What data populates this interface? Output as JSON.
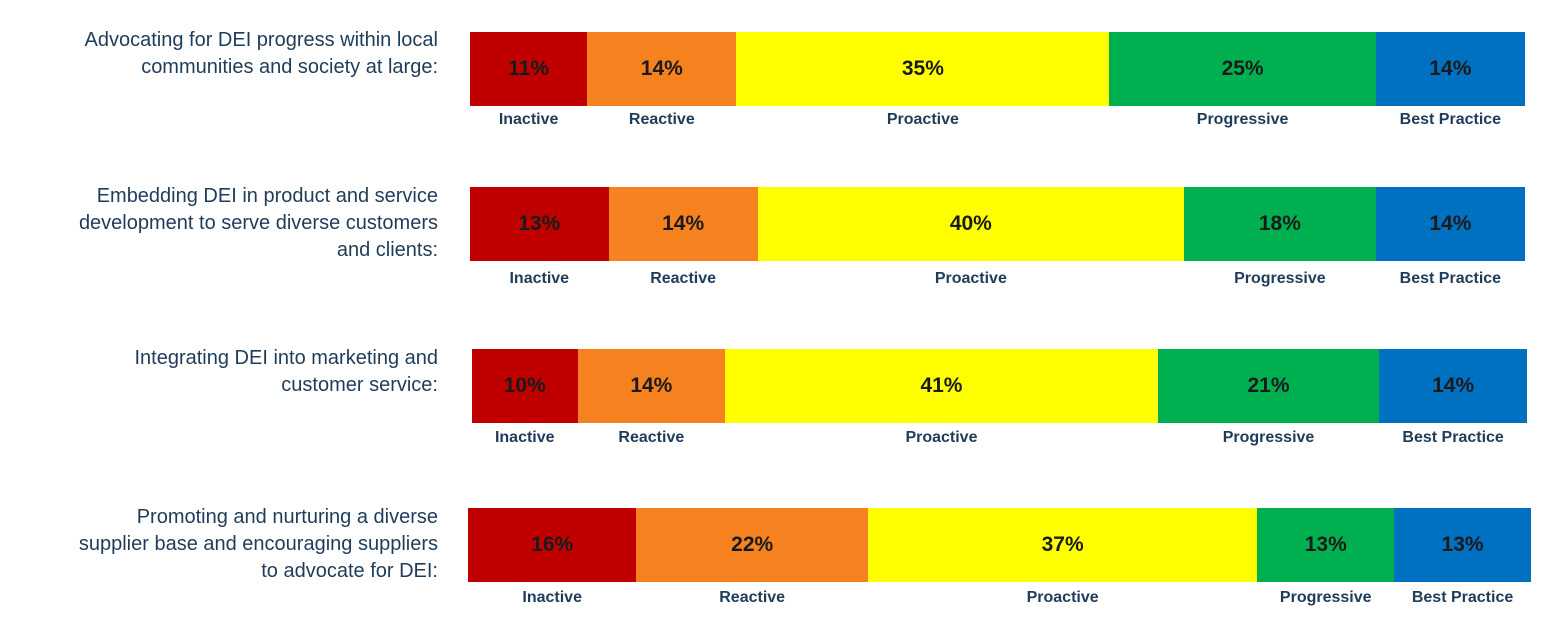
{
  "chart_data": {
    "type": "bar",
    "orientation": "horizontal",
    "stacked": true,
    "categories": [
      "Inactive",
      "Reactive",
      "Proactive",
      "Progressive",
      "Best Practice"
    ],
    "colors": [
      "#c00000",
      "#f5821f",
      "#ffff00",
      "#00b050",
      "#0070c0"
    ],
    "value_unit": "%",
    "rows": [
      {
        "label": "Advocating for DEI progress within local\ncommunities and society at large:",
        "values": [
          11,
          14,
          35,
          25,
          14
        ],
        "value_labels": [
          "11%",
          "14%",
          "35%",
          "25%",
          "14%"
        ]
      },
      {
        "label": "Embedding DEI in product and service\ndevelopment to serve diverse customers\nand clients:",
        "values": [
          13,
          14,
          40,
          18,
          14
        ],
        "value_labels": [
          "13%",
          "14%",
          "40%",
          "18%",
          "14%"
        ]
      },
      {
        "label": "Integrating DEI into marketing and\ncustomer service:",
        "values": [
          10,
          14,
          41,
          21,
          14
        ],
        "value_labels": [
          "10%",
          "14%",
          "41%",
          "21%",
          "14%"
        ]
      },
      {
        "label": "Promoting and nurturing a diverse\nsupplier base and encouraging suppliers\nto advocate for DEI:",
        "values": [
          16,
          22,
          37,
          13,
          13
        ],
        "value_labels": [
          "16%",
          "22%",
          "37%",
          "13%",
          "13%"
        ]
      }
    ]
  }
}
